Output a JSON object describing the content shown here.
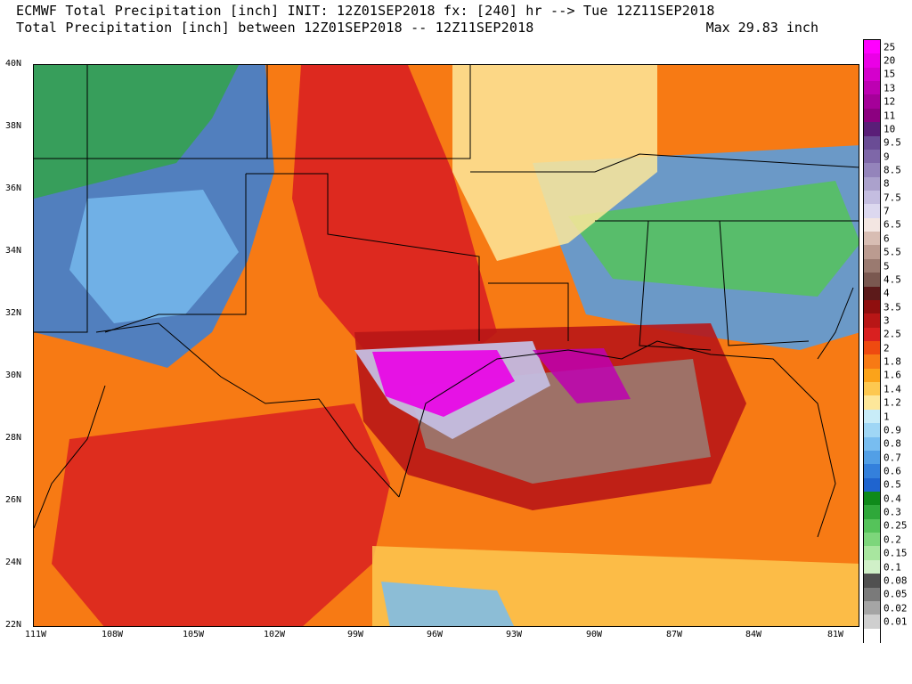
{
  "header": {
    "line1": "ECMWF Total Precipitation [inch] INIT: 12Z01SEP2018 fx: [240] hr --> Tue 12Z11SEP2018",
    "line2": "Total Precipitation [inch] between 12Z01SEP2018 -- 12Z11SEP2018",
    "max": "Max 29.83 inch"
  },
  "lat_labels": [
    "40N",
    "38N",
    "36N",
    "34N",
    "32N",
    "30N",
    "28N",
    "26N",
    "24N",
    "22N"
  ],
  "lon_labels": [
    "111W",
    "108W",
    "105W",
    "102W",
    "99W",
    "96W",
    "93W",
    "90W",
    "87W",
    "84W",
    "81W"
  ],
  "legend": [
    {
      "label": "25",
      "color": "#ff00ff"
    },
    {
      "label": "20",
      "color": "#ea00e6"
    },
    {
      "label": "15",
      "color": "#d400cc"
    },
    {
      "label": "13",
      "color": "#bd00b2"
    },
    {
      "label": "12",
      "color": "#a50099"
    },
    {
      "label": "11",
      "color": "#8c0080"
    },
    {
      "label": "10",
      "color": "#5a1e78"
    },
    {
      "label": "9.5",
      "color": "#6a4c95"
    },
    {
      "label": "9",
      "color": "#7e67a8"
    },
    {
      "label": "8.5",
      "color": "#9484bb"
    },
    {
      "label": "8",
      "color": "#aba1cc"
    },
    {
      "label": "7.5",
      "color": "#c4bde0"
    },
    {
      "label": "7",
      "color": "#dcd8ef"
    },
    {
      "label": "6.5",
      "color": "#f3e6e2"
    },
    {
      "label": "6",
      "color": "#d8bdb3"
    },
    {
      "label": "5.5",
      "color": "#bb9b90"
    },
    {
      "label": "5",
      "color": "#9a7a70"
    },
    {
      "label": "4.5",
      "color": "#7a5850"
    },
    {
      "label": "4",
      "color": "#5c1a1a"
    },
    {
      "label": "3.5",
      "color": "#8f0f0f"
    },
    {
      "label": "3",
      "color": "#b81616"
    },
    {
      "label": "2.5",
      "color": "#d92020"
    },
    {
      "label": "2",
      "color": "#ee4a10"
    },
    {
      "label": "1.8",
      "color": "#f77a14"
    },
    {
      "label": "1.6",
      "color": "#fba31a"
    },
    {
      "label": "1.4",
      "color": "#fdc850"
    },
    {
      "label": "1.2",
      "color": "#fde79a"
    },
    {
      "label": "1",
      "color": "#c8ecf8"
    },
    {
      "label": "0.9",
      "color": "#9fd6f5"
    },
    {
      "label": "0.8",
      "color": "#78bdf0"
    },
    {
      "label": "0.7",
      "color": "#529fe6"
    },
    {
      "label": "0.6",
      "color": "#3480dc"
    },
    {
      "label": "0.5",
      "color": "#1f64cf"
    },
    {
      "label": "0.4",
      "color": "#0f8a1a"
    },
    {
      "label": "0.3",
      "color": "#2fa83a"
    },
    {
      "label": "0.25",
      "color": "#55c35a"
    },
    {
      "label": "0.2",
      "color": "#7dd67b"
    },
    {
      "label": "0.15",
      "color": "#a8e69f"
    },
    {
      "label": "0.1",
      "color": "#d0f0c8"
    },
    {
      "label": "0.08",
      "color": "#505050"
    },
    {
      "label": "0.05",
      "color": "#7a7a7a"
    },
    {
      "label": "0.02",
      "color": "#a5a5a5"
    },
    {
      "label": "0.01",
      "color": "#cfcfcf"
    },
    {
      "label": "",
      "color": "#ffffff"
    }
  ]
}
